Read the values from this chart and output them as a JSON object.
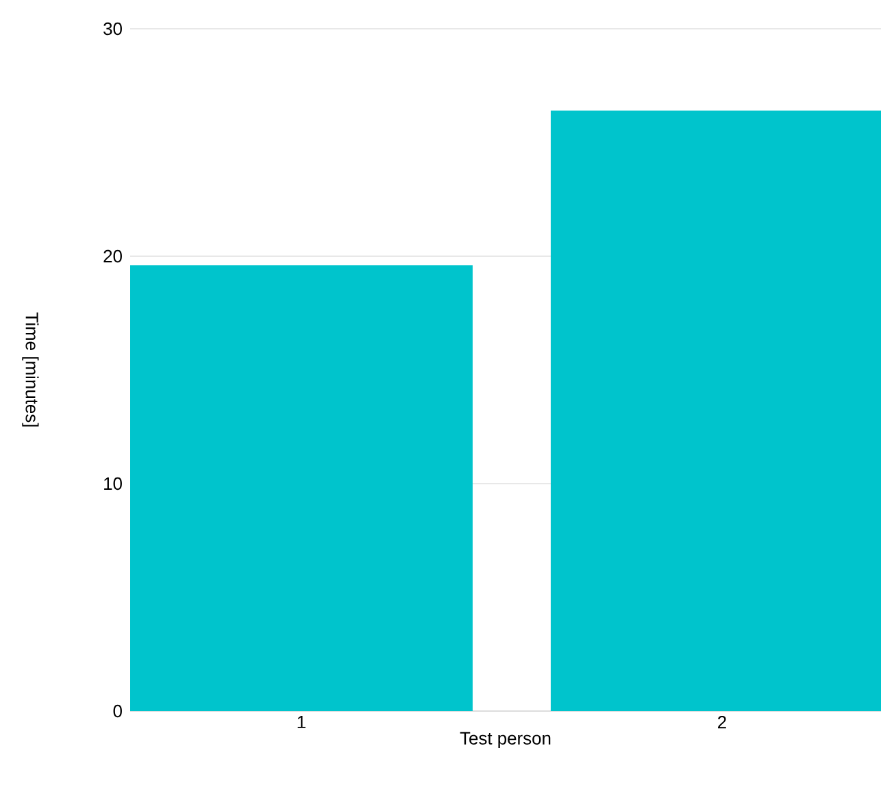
{
  "chart_data": {
    "type": "bar",
    "xlabel": "Test person",
    "ylabel": "Time [minutes]",
    "categories": [
      "1",
      "2"
    ],
    "values": [
      19.6,
      26.4
    ],
    "color": "#00c4cc",
    "ylim": [
      0,
      30
    ],
    "yticks": [
      0,
      10,
      20,
      30
    ],
    "grid": "y"
  }
}
